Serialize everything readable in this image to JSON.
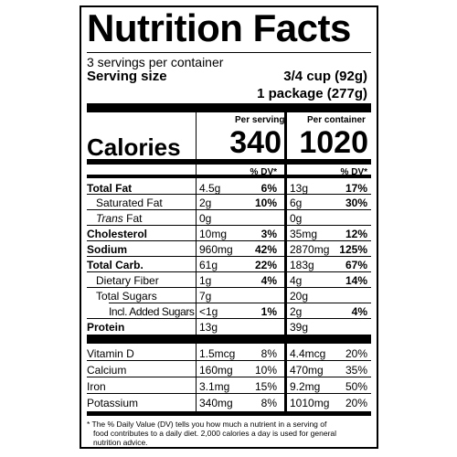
{
  "title": "Nutrition Facts",
  "servings_per_container": "3 servings per container",
  "serving_size_label": "Serving size",
  "serving_size_value": "3/4 cup (92g)",
  "package_size_value": "1 package (277g)",
  "col_per_serving": "Per serving",
  "col_per_container": "Per container",
  "calories_label": "Calories",
  "calories_per_serving": "340",
  "calories_per_container": "1020",
  "dv_header": "% DV*",
  "nutrients": [
    {
      "name": "Total Fat",
      "amt1": "4.5g",
      "dv1": "6%",
      "amt2": "13g",
      "dv2": "17%"
    },
    {
      "name": "Saturated Fat",
      "amt1": "2g",
      "dv1": "10%",
      "amt2": "6g",
      "dv2": "30%"
    },
    {
      "name_italic": "Trans",
      "name_rest": " Fat",
      "amt1": "0g",
      "amt2": "0g"
    },
    {
      "name": "Cholesterol",
      "amt1": "10mg",
      "dv1": "3%",
      "amt2": "35mg",
      "dv2": "12%"
    },
    {
      "name": "Sodium",
      "amt1": "960mg",
      "dv1": "42%",
      "amt2": "2870mg",
      "dv2": "125%"
    },
    {
      "name": "Total Carb.",
      "amt1": "61g",
      "dv1": "22%",
      "amt2": "183g",
      "dv2": "67%"
    },
    {
      "name": "Dietary Fiber",
      "amt1": "1g",
      "dv1": "4%",
      "amt2": "4g",
      "dv2": "14%"
    },
    {
      "name": "Total Sugars",
      "amt1": "7g",
      "amt2": "20g"
    },
    {
      "name": "Incl. Added Sugars",
      "amt1": "<1g",
      "dv1": "1%",
      "amt2": "2g",
      "dv2": "4%"
    },
    {
      "name": "Protein",
      "amt1": "13g",
      "amt2": "39g"
    }
  ],
  "vitamins": [
    {
      "name": "Vitamin D",
      "amt1": "1.5mcg",
      "dv1": "8%",
      "amt2": "4.4mcg",
      "dv2": "20%"
    },
    {
      "name": "Calcium",
      "amt1": "160mg",
      "dv1": "10%",
      "amt2": "470mg",
      "dv2": "35%"
    },
    {
      "name": "Iron",
      "amt1": "3.1mg",
      "dv1": "15%",
      "amt2": "9.2mg",
      "dv2": "50%"
    },
    {
      "name": "Potassium",
      "amt1": "340mg",
      "dv1": "8%",
      "amt2": "1010mg",
      "dv2": "20%"
    }
  ],
  "footnote_line1": "* The % Daily Value (DV) tells you how much a nutrient in a serving of",
  "footnote_line2": "food contributes to a daily diet. 2,000 calories a day is used for general",
  "footnote_line3": "nutrition advice."
}
